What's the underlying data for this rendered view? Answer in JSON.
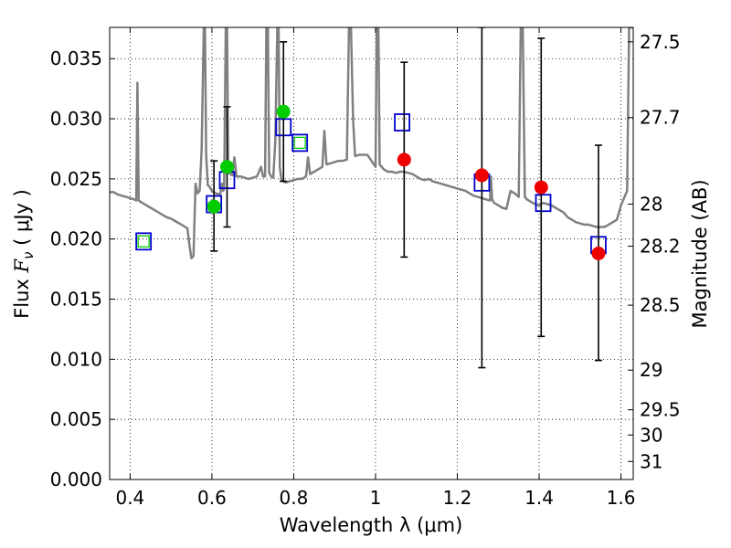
{
  "chart_data": {
    "type": "scatter",
    "xlabel": "Wavelength  λ (μm)",
    "ylabel_main": "Flux  ",
    "ylabel_symbol": "F",
    "ylabel_sub": "ν",
    "ylabel_unit": "  ( μJy )",
    "y2label": "Magnitude (AB)",
    "xlim": [
      0.35,
      1.63
    ],
    "ylim": [
      0.0,
      0.0376
    ],
    "grid": true,
    "x_ticks": [
      0.4,
      0.6,
      0.8,
      1.0,
      1.2,
      1.4,
      1.6
    ],
    "x_tick_labels": [
      "0.4",
      "0.6",
      "0.8",
      "1",
      "1.2",
      "1.4",
      "1.6"
    ],
    "y_ticks": [
      0.0,
      0.005,
      0.01,
      0.015,
      0.02,
      0.025,
      0.03,
      0.035
    ],
    "y_tick_labels": [
      "0.000",
      "0.005",
      "0.010",
      "0.015",
      "0.020",
      "0.025",
      "0.030",
      "0.035"
    ],
    "y2_ticks": [
      {
        "flux": 0.0364,
        "label": "27.5"
      },
      {
        "flux": 0.0301,
        "label": "27.7"
      },
      {
        "flux": 0.0229,
        "label": "28"
      },
      {
        "flux": 0.0194,
        "label": "28.2"
      },
      {
        "flux": 0.0145,
        "label": "28.5"
      },
      {
        "flux": 0.0091,
        "label": "29"
      },
      {
        "flux": 0.0058,
        "label": "29.5"
      },
      {
        "flux": 0.0037,
        "label": "30"
      },
      {
        "flux": 0.0015,
        "label": "31"
      }
    ],
    "colors": {
      "template": "#808080",
      "model_box": "#0000cc",
      "inner_box": "#00cc00",
      "green_point": "#00cc00",
      "red_point": "#ee0000",
      "errorbar": "#000000"
    },
    "series": [
      {
        "name": "template_spectrum",
        "points": [
          [
            0.35,
            0.0239
          ],
          [
            0.36,
            0.0239
          ],
          [
            0.37,
            0.0237
          ],
          [
            0.38,
            0.0236
          ],
          [
            0.39,
            0.0235
          ],
          [
            0.4,
            0.0234
          ],
          [
            0.41,
            0.0233
          ],
          [
            0.415,
            0.0232
          ],
          [
            0.418,
            0.033
          ],
          [
            0.421,
            0.0232
          ],
          [
            0.43,
            0.023
          ],
          [
            0.44,
            0.0228
          ],
          [
            0.45,
            0.0226
          ],
          [
            0.46,
            0.0224
          ],
          [
            0.47,
            0.0222
          ],
          [
            0.48,
            0.022
          ],
          [
            0.49,
            0.0218
          ],
          [
            0.5,
            0.0217
          ],
          [
            0.51,
            0.0215
          ],
          [
            0.52,
            0.0213
          ],
          [
            0.53,
            0.0211
          ],
          [
            0.54,
            0.0209
          ],
          [
            0.545,
            0.0195
          ],
          [
            0.55,
            0.0184
          ],
          [
            0.555,
            0.0186
          ],
          [
            0.56,
            0.0246
          ],
          [
            0.565,
            0.0238
          ],
          [
            0.57,
            0.024
          ],
          [
            0.575,
            0.0275
          ],
          [
            0.58,
            0.0376
          ],
          [
            0.583,
            0.0376
          ],
          [
            0.586,
            0.027
          ],
          [
            0.59,
            0.0245
          ],
          [
            0.595,
            0.0243
          ],
          [
            0.6,
            0.024
          ],
          [
            0.61,
            0.0238
          ],
          [
            0.62,
            0.0237
          ],
          [
            0.625,
            0.0246
          ],
          [
            0.628,
            0.024
          ],
          [
            0.63,
            0.0243
          ],
          [
            0.634,
            0.0376
          ],
          [
            0.637,
            0.0376
          ],
          [
            0.64,
            0.0255
          ],
          [
            0.65,
            0.0253
          ],
          [
            0.655,
            0.0268
          ],
          [
            0.66,
            0.0252
          ],
          [
            0.67,
            0.0252
          ],
          [
            0.68,
            0.0251
          ],
          [
            0.69,
            0.025
          ],
          [
            0.7,
            0.0251
          ],
          [
            0.71,
            0.0252
          ],
          [
            0.72,
            0.026
          ],
          [
            0.725,
            0.0252
          ],
          [
            0.73,
            0.0252
          ],
          [
            0.733,
            0.0376
          ],
          [
            0.737,
            0.0376
          ],
          [
            0.74,
            0.0255
          ],
          [
            0.745,
            0.0252
          ],
          [
            0.75,
            0.0251
          ],
          [
            0.755,
            0.0282
          ],
          [
            0.76,
            0.0376
          ],
          [
            0.763,
            0.0376
          ],
          [
            0.766,
            0.026
          ],
          [
            0.77,
            0.0249
          ],
          [
            0.78,
            0.0247
          ],
          [
            0.79,
            0.0248
          ],
          [
            0.8,
            0.0249
          ],
          [
            0.81,
            0.025
          ],
          [
            0.82,
            0.025
          ],
          [
            0.83,
            0.0252
          ],
          [
            0.835,
            0.0268
          ],
          [
            0.84,
            0.0254
          ],
          [
            0.85,
            0.0256
          ],
          [
            0.86,
            0.0258
          ],
          [
            0.87,
            0.026
          ],
          [
            0.875,
            0.029
          ],
          [
            0.88,
            0.0262
          ],
          [
            0.89,
            0.0263
          ],
          [
            0.9,
            0.0264
          ],
          [
            0.91,
            0.0265
          ],
          [
            0.92,
            0.0265
          ],
          [
            0.93,
            0.0266
          ],
          [
            0.935,
            0.0376
          ],
          [
            0.94,
            0.0376
          ],
          [
            0.945,
            0.03
          ],
          [
            0.95,
            0.0269
          ],
          [
            0.96,
            0.027
          ],
          [
            0.97,
            0.027
          ],
          [
            0.98,
            0.027
          ],
          [
            0.99,
            0.0265
          ],
          [
            1.0,
            0.026
          ],
          [
            1.003,
            0.0376
          ],
          [
            1.007,
            0.0376
          ],
          [
            1.01,
            0.0262
          ],
          [
            1.02,
            0.0258
          ],
          [
            1.03,
            0.0256
          ],
          [
            1.04,
            0.0256
          ],
          [
            1.05,
            0.0255
          ],
          [
            1.06,
            0.0256
          ],
          [
            1.07,
            0.0256
          ],
          [
            1.08,
            0.0255
          ],
          [
            1.09,
            0.0254
          ],
          [
            1.1,
            0.0252
          ],
          [
            1.11,
            0.025
          ],
          [
            1.12,
            0.0249
          ],
          [
            1.13,
            0.025
          ],
          [
            1.14,
            0.0248
          ],
          [
            1.15,
            0.0247
          ],
          [
            1.16,
            0.0246
          ],
          [
            1.17,
            0.0245
          ],
          [
            1.18,
            0.0244
          ],
          [
            1.19,
            0.0243
          ],
          [
            1.2,
            0.0242
          ],
          [
            1.21,
            0.0241
          ],
          [
            1.22,
            0.024
          ],
          [
            1.23,
            0.0238
          ],
          [
            1.24,
            0.0236
          ],
          [
            1.25,
            0.0235
          ],
          [
            1.26,
            0.0234
          ],
          [
            1.27,
            0.0233
          ],
          [
            1.28,
            0.0232
          ],
          [
            1.282,
            0.0252
          ],
          [
            1.285,
            0.0233
          ],
          [
            1.29,
            0.023
          ],
          [
            1.3,
            0.0228
          ],
          [
            1.31,
            0.0226
          ],
          [
            1.32,
            0.0225
          ],
          [
            1.33,
            0.024
          ],
          [
            1.34,
            0.0238
          ],
          [
            1.35,
            0.0235
          ],
          [
            1.355,
            0.0376
          ],
          [
            1.36,
            0.0376
          ],
          [
            1.365,
            0.0235
          ],
          [
            1.37,
            0.0233
          ],
          [
            1.38,
            0.0231
          ],
          [
            1.39,
            0.0229
          ],
          [
            1.4,
            0.0228
          ],
          [
            1.41,
            0.023
          ],
          [
            1.42,
            0.0229
          ],
          [
            1.43,
            0.0228
          ],
          [
            1.44,
            0.0226
          ],
          [
            1.45,
            0.0224
          ],
          [
            1.46,
            0.0222
          ],
          [
            1.47,
            0.0218
          ],
          [
            1.48,
            0.0216
          ],
          [
            1.49,
            0.0214
          ],
          [
            1.5,
            0.0213
          ],
          [
            1.51,
            0.0212
          ],
          [
            1.52,
            0.0212
          ],
          [
            1.53,
            0.0211
          ],
          [
            1.54,
            0.021
          ],
          [
            1.55,
            0.021
          ],
          [
            1.56,
            0.021
          ],
          [
            1.57,
            0.0212
          ],
          [
            1.58,
            0.0214
          ],
          [
            1.59,
            0.0216
          ],
          [
            1.6,
            0.0228
          ],
          [
            1.61,
            0.0236
          ],
          [
            1.615,
            0.024
          ],
          [
            1.62,
            0.0376
          ],
          [
            1.63,
            0.0376
          ]
        ]
      },
      {
        "name": "model_photometry",
        "points": [
          [
            0.433,
            0.0198
          ],
          [
            0.605,
            0.0229
          ],
          [
            0.637,
            0.0249
          ],
          [
            0.775,
            0.0293
          ],
          [
            0.815,
            0.028
          ],
          [
            1.065,
            0.0297
          ],
          [
            1.26,
            0.0247
          ],
          [
            1.41,
            0.023
          ],
          [
            1.545,
            0.0195
          ]
        ]
      },
      {
        "name": "model_photometry_inner",
        "points": [
          [
            0.433,
            0.0198
          ],
          [
            0.815,
            0.028
          ]
        ]
      },
      {
        "name": "observed_green",
        "points": [
          {
            "x": 0.605,
            "y": 0.0227,
            "yerr_low": 0.019,
            "yerr_high": 0.0265
          },
          {
            "x": 0.637,
            "y": 0.026,
            "yerr_low": 0.021,
            "yerr_high": 0.031
          },
          {
            "x": 0.775,
            "y": 0.0306,
            "yerr_low": 0.0248,
            "yerr_high": 0.0364
          }
        ]
      },
      {
        "name": "observed_red",
        "points": [
          {
            "x": 1.07,
            "y": 0.0266,
            "yerr_low": 0.0185,
            "yerr_high": 0.0347
          },
          {
            "x": 1.26,
            "y": 0.0253,
            "yerr_low": 0.0093,
            "yerr_high": 0.0376
          },
          {
            "x": 1.405,
            "y": 0.0243,
            "yerr_low": 0.0119,
            "yerr_high": 0.0367
          },
          {
            "x": 1.545,
            "y": 0.0188,
            "yerr_low": 0.0099,
            "yerr_high": 0.0278
          }
        ]
      }
    ]
  }
}
